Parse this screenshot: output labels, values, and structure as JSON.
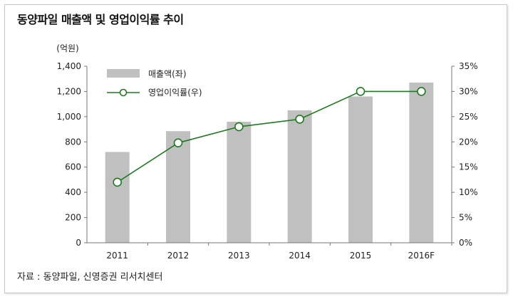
{
  "title": "동양파일 매출액 및 영업이익률 추이",
  "source": "자료 : 동양파일, 신영증권 리서치센터",
  "chart_data": {
    "type": "bar",
    "categories": [
      "2011",
      "2012",
      "2013",
      "2014",
      "2015",
      "2016F"
    ],
    "left_unit_label": "(억원)",
    "ylim": [
      0,
      1400
    ],
    "ylim2": [
      0,
      35
    ],
    "yticks": [
      "0",
      "200",
      "400",
      "600",
      "800",
      "1,000",
      "1,200",
      "1,400"
    ],
    "y2ticks": [
      "0%",
      "5%",
      "10%",
      "15%",
      "20%",
      "25%",
      "30%",
      "35%"
    ],
    "legend_position": "top-left",
    "series": [
      {
        "name": "매출액(좌)",
        "type": "bar",
        "axis": "left",
        "color": "#c0c0c0",
        "values": [
          720,
          885,
          960,
          1050,
          1160,
          1270
        ]
      },
      {
        "name": "영업이익률(우)",
        "type": "line",
        "axis": "right",
        "color": "#1e7a1e",
        "values": [
          12.0,
          19.8,
          23.0,
          24.5,
          30.0,
          30.0
        ]
      }
    ]
  }
}
